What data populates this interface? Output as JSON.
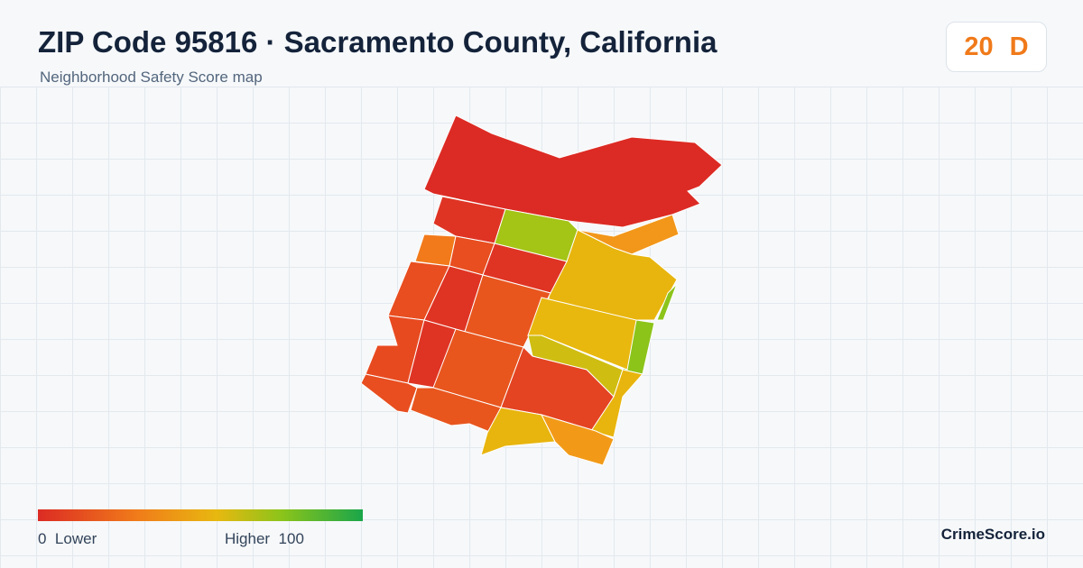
{
  "header": {
    "title": "ZIP Code 95816 · Sacramento County, California",
    "subtitle": "Neighborhood Safety Score map"
  },
  "score": {
    "value": 20,
    "grade": "D"
  },
  "legend": {
    "min": 0,
    "min_label": "Lower",
    "max_label": "Higher",
    "max": 100
  },
  "brand": "CrimeScore.io"
}
